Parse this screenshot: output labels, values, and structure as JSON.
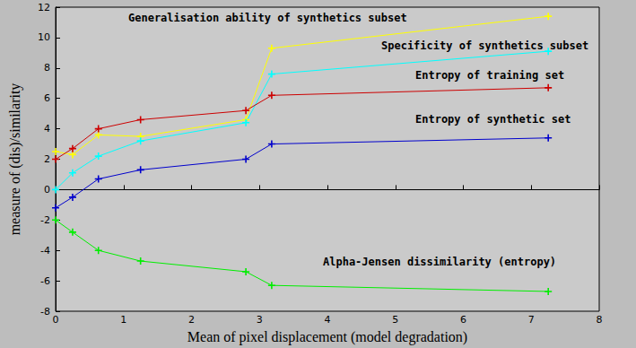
{
  "chart_data": {
    "type": "line",
    "x_label": "Mean of pixel displacement (model degradation)",
    "y_label": "measure of (dis)/similarity",
    "x": [
      0,
      0.25,
      0.63,
      1.25,
      2.8,
      3.18,
      7.25
    ],
    "series": [
      {
        "name": "Generalisation ability of synthetics subset",
        "color": "#ffff00",
        "values": [
          2.5,
          2.3,
          3.6,
          3.5,
          4.6,
          9.3,
          11.4
        ]
      },
      {
        "name": "Specificity of synthetics subset",
        "color": "#00ffff",
        "values": [
          0.0,
          1.1,
          2.2,
          3.2,
          4.4,
          7.6,
          9.1
        ]
      },
      {
        "name": "Entropy of training set",
        "color": "#cc0000",
        "values": [
          2.0,
          2.7,
          4.0,
          4.6,
          5.2,
          6.2,
          6.7
        ]
      },
      {
        "name": "Entropy of synthetic set",
        "color": "#0000cc",
        "values": [
          -1.2,
          -0.5,
          0.7,
          1.3,
          2.0,
          3.0,
          3.4
        ]
      },
      {
        "name": "Alpha-Jensen dissimilarity (entropy)",
        "color": "#00ee00",
        "values": [
          -2.0,
          -2.8,
          -4.0,
          -4.7,
          -5.4,
          -6.3,
          -6.7
        ]
      }
    ],
    "xlim": [
      0,
      8
    ],
    "xticks": [
      0,
      1,
      2,
      3,
      4,
      5,
      6,
      7,
      8
    ],
    "ylim": [
      -8,
      12
    ],
    "yticks": [
      -8,
      -6,
      -4,
      -2,
      0,
      2,
      4,
      6,
      8,
      10,
      12
    ],
    "grid": false,
    "marker": "plus"
  }
}
